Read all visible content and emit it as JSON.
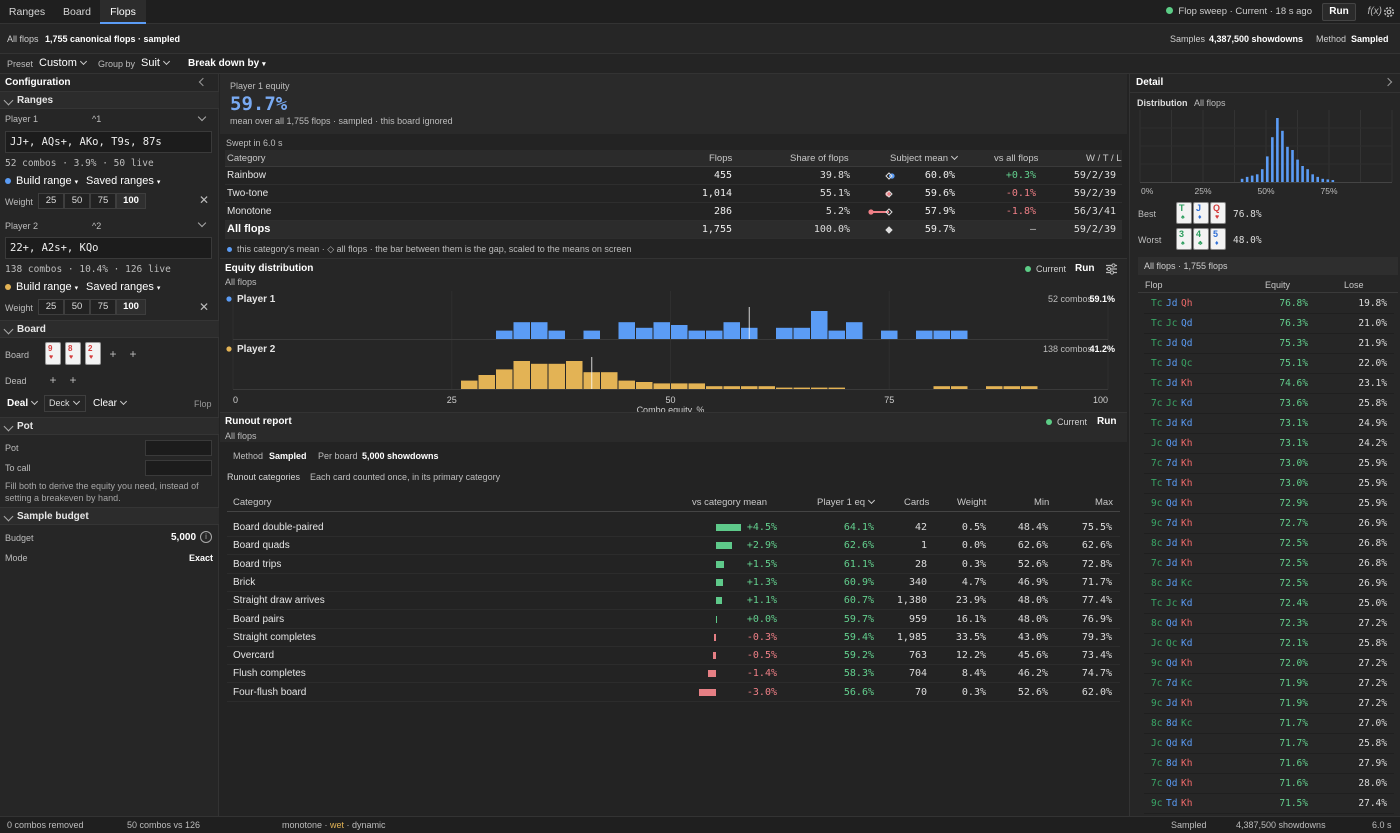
{
  "top": {
    "tabs": [
      "Ranges",
      "Board",
      "Flops"
    ],
    "status": "Flop sweep · Current · 18 s ago",
    "run": "Run",
    "fx": "f(x)"
  },
  "bar2": {
    "prefix": "All flops",
    "summary": "1,755 canonical flops · sampled",
    "samples_label": "Samples",
    "samples_value": "4,387,500 showdowns",
    "method_label": "Method",
    "method_value": "Sampled"
  },
  "bar3": {
    "preset_label": "Preset",
    "preset_value": "Custom",
    "group_label": "Group by",
    "group_value": "Suit",
    "breakdown": "Break down by"
  },
  "left": {
    "title": "Configuration",
    "ranges_title": "Ranges",
    "p1_label": "Player 1",
    "p1_shortcut": "^1",
    "p1_range": "JJ+, AQs+, AKo, T9s, 87s",
    "p1_stats": "52 combos · 3.9% · 50 live",
    "p2_label": "Player 2",
    "p2_shortcut": "^2",
    "p2_range": "22+, A2s+, KQo",
    "p2_stats": "138 combos · 10.4% · 126 live",
    "build_range": "Build range",
    "saved_ranges": "Saved ranges",
    "weight_label": "Weight",
    "weights": [
      "25",
      "50",
      "75",
      "100"
    ],
    "board_title": "Board",
    "board_label": "Board",
    "board_cards": [
      {
        "rank": "9",
        "suit": "♥"
      },
      {
        "rank": "8",
        "suit": "♥"
      },
      {
        "rank": "2",
        "suit": "♥"
      }
    ],
    "dead_label": "Dead",
    "deal": "Deal",
    "deck": "Deck",
    "clear": "Clear",
    "street": "Flop",
    "pot_title": "Pot",
    "pot_label": "Pot",
    "tocall_label": "To call",
    "pot_hint": "Fill both to derive the equity you need, instead of setting a breakeven by hand.",
    "budget_title": "Sample budget",
    "budget_label": "Budget",
    "budget_value": "5,000",
    "mode_label": "Mode",
    "mode_value": "Exact"
  },
  "summary": {
    "label": "Player 1 equity",
    "value": "59.7%",
    "note": "mean over all 1,755 flops · sampled · this board ignored",
    "swept": "Swept in 6.0 s"
  },
  "cat_table": {
    "headers": [
      "Category",
      "Flops",
      "Share of flops",
      "Subject mean",
      "vs all flops",
      "W / T / L"
    ],
    "rows": [
      {
        "name": "Rainbow",
        "flops": "455",
        "share": "39.8%",
        "mean": "60.0%",
        "vs": "+0.3%",
        "wtl": "59/2/39",
        "sign": "pos"
      },
      {
        "name": "Two-tone",
        "flops": "1,014",
        "share": "55.1%",
        "mean": "59.6%",
        "vs": "-0.1%",
        "wtl": "59/2/39",
        "sign": "neg"
      },
      {
        "name": "Monotone",
        "flops": "286",
        "share": "5.2%",
        "mean": "57.9%",
        "vs": "-1.8%",
        "wtl": "56/3/41",
        "sign": "neg"
      },
      {
        "name": "All flops",
        "flops": "1,755",
        "share": "100.0%",
        "mean": "59.7%",
        "vs": "—",
        "wtl": "59/2/39",
        "sign": "none"
      }
    ],
    "legend": "this category's mean  ·  ◇ all flops · the bar between them is the gap, scaled to the means on screen"
  },
  "equity_dist": {
    "title": "Equity distribution",
    "subtitle": "All flops",
    "current": "Current",
    "run": "Run",
    "xlabel": "Combo equity, %",
    "x_ticks": [
      "0",
      "25",
      "50",
      "75",
      "100"
    ]
  },
  "chart_data": [
    {
      "type": "bar",
      "title": "Equity distribution",
      "xlabel": "Combo equity, %",
      "xlim": [
        0,
        100
      ],
      "series": [
        {
          "name": "Player 1",
          "info": "52 combos",
          "mean": "59.1%",
          "color": "#5b9cf5",
          "bins": [
            [
              30,
              0.3
            ],
            [
              32,
              0.6
            ],
            [
              34,
              0.6
            ],
            [
              36,
              0.3
            ],
            [
              40,
              0.3
            ],
            [
              44,
              0.6
            ],
            [
              46,
              0.4
            ],
            [
              48,
              0.6
            ],
            [
              50,
              0.5
            ],
            [
              52,
              0.3
            ],
            [
              54,
              0.3
            ],
            [
              56,
              0.6
            ],
            [
              58,
              0.4
            ],
            [
              62,
              0.4
            ],
            [
              64,
              0.4
            ],
            [
              66,
              1.0
            ],
            [
              68,
              0.3
            ],
            [
              70,
              0.6
            ],
            [
              74,
              0.3
            ],
            [
              78,
              0.3
            ],
            [
              80,
              0.3
            ],
            [
              82,
              0.3
            ]
          ],
          "marker": 59
        },
        {
          "name": "Player 2",
          "info": "138 combos",
          "mean": "41.2%",
          "color": "#e3b355",
          "bins": [
            [
              26,
              0.3
            ],
            [
              28,
              0.5
            ],
            [
              30,
              0.7
            ],
            [
              32,
              1.0
            ],
            [
              34,
              0.9
            ],
            [
              36,
              0.9
            ],
            [
              38,
              1.0
            ],
            [
              40,
              0.6
            ],
            [
              42,
              0.6
            ],
            [
              44,
              0.3
            ],
            [
              46,
              0.25
            ],
            [
              48,
              0.2
            ],
            [
              50,
              0.2
            ],
            [
              52,
              0.2
            ],
            [
              54,
              0.1
            ],
            [
              56,
              0.1
            ],
            [
              58,
              0.1
            ],
            [
              60,
              0.1
            ],
            [
              62,
              0.05
            ],
            [
              64,
              0.05
            ],
            [
              66,
              0.05
            ],
            [
              68,
              0.05
            ],
            [
              80,
              0.1
            ],
            [
              82,
              0.1
            ],
            [
              86,
              0.1
            ],
            [
              88,
              0.1
            ],
            [
              90,
              0.1
            ]
          ],
          "marker": 41
        }
      ]
    },
    {
      "type": "bar",
      "title": "Distribution",
      "x_ticks": [
        "0%",
        "25%",
        "50%",
        "75%"
      ],
      "xlim": [
        0,
        100
      ],
      "bins": [
        [
          40,
          0.05
        ],
        [
          42,
          0.08
        ],
        [
          44,
          0.1
        ],
        [
          46,
          0.12
        ],
        [
          48,
          0.2
        ],
        [
          50,
          0.4
        ],
        [
          52,
          0.7
        ],
        [
          54,
          1.0
        ],
        [
          56,
          0.8
        ],
        [
          58,
          0.55
        ],
        [
          60,
          0.5
        ],
        [
          62,
          0.35
        ],
        [
          64,
          0.25
        ],
        [
          66,
          0.2
        ],
        [
          68,
          0.12
        ],
        [
          70,
          0.08
        ],
        [
          72,
          0.05
        ],
        [
          74,
          0.04
        ],
        [
          76,
          0.03
        ]
      ]
    }
  ],
  "runout": {
    "title": "Runout report",
    "subtitle": "All flops",
    "current": "Current",
    "run": "Run",
    "method_label": "Method",
    "method_value": "Sampled",
    "perboard_label": "Per board",
    "perboard_value": "5,000 showdowns",
    "cat_label": "Runout categories",
    "cat_note": "Each card counted once, in its primary category",
    "headers": [
      "Category",
      "vs category mean",
      "Player 1 eq",
      "Cards",
      "Weight",
      "Min",
      "Max"
    ],
    "rows": [
      {
        "name": "Board double-paired",
        "delta": "+4.5%",
        "d": 4.5,
        "eq": "64.1%",
        "cards": "42",
        "weight": "0.5%",
        "min": "48.4%",
        "max": "75.5%"
      },
      {
        "name": "Board quads",
        "delta": "+2.9%",
        "d": 2.9,
        "eq": "62.6%",
        "cards": "1",
        "weight": "0.0%",
        "min": "62.6%",
        "max": "62.6%"
      },
      {
        "name": "Board trips",
        "delta": "+1.5%",
        "d": 1.5,
        "eq": "61.1%",
        "cards": "28",
        "weight": "0.3%",
        "min": "52.6%",
        "max": "72.8%"
      },
      {
        "name": "Brick",
        "delta": "+1.3%",
        "d": 1.3,
        "eq": "60.9%",
        "cards": "340",
        "weight": "4.7%",
        "min": "46.9%",
        "max": "71.7%"
      },
      {
        "name": "Straight draw arrives",
        "delta": "+1.1%",
        "d": 1.1,
        "eq": "60.7%",
        "cards": "1,380",
        "weight": "23.9%",
        "min": "48.0%",
        "max": "77.4%"
      },
      {
        "name": "Board pairs",
        "delta": "+0.0%",
        "d": 0.0,
        "eq": "59.7%",
        "cards": "959",
        "weight": "16.1%",
        "min": "48.0%",
        "max": "76.9%"
      },
      {
        "name": "Straight completes",
        "delta": "-0.3%",
        "d": -0.3,
        "eq": "59.4%",
        "cards": "1,985",
        "weight": "33.5%",
        "min": "43.0%",
        "max": "79.3%"
      },
      {
        "name": "Overcard",
        "delta": "-0.5%",
        "d": -0.5,
        "eq": "59.2%",
        "cards": "763",
        "weight": "12.2%",
        "min": "45.6%",
        "max": "73.4%"
      },
      {
        "name": "Flush completes",
        "delta": "-1.4%",
        "d": -1.4,
        "eq": "58.3%",
        "cards": "704",
        "weight": "8.4%",
        "min": "46.2%",
        "max": "74.7%"
      },
      {
        "name": "Four-flush board",
        "delta": "-3.0%",
        "d": -3.0,
        "eq": "56.6%",
        "cards": "70",
        "weight": "0.3%",
        "min": "52.6%",
        "max": "62.0%"
      }
    ]
  },
  "detail": {
    "title": "Detail",
    "dist_label": "Distribution",
    "dist_scope": "All flops",
    "best_label": "Best",
    "best_cards": [
      {
        "rank": "T",
        "suit": "♠",
        "color": "#2a9d5c"
      },
      {
        "rank": "J",
        "suit": "♦",
        "color": "#2f6fd6"
      },
      {
        "rank": "Q",
        "suit": "♥",
        "color": "#d43c3c"
      }
    ],
    "best_value": "76.8%",
    "worst_label": "Worst",
    "worst_cards": [
      {
        "rank": "3",
        "suit": "♠",
        "color": "#2a9d5c"
      },
      {
        "rank": "4",
        "suit": "♣",
        "color": "#2a9d5c"
      },
      {
        "rank": "5",
        "suit": "♦",
        "color": "#2f6fd6"
      }
    ],
    "worst_value": "48.0%",
    "list_title": "All flops · 1,755 flops",
    "list_headers": [
      "Flop",
      "Equity",
      "Lose"
    ],
    "flops": [
      {
        "c": [
          "Tc",
          "Jd",
          "Qh"
        ],
        "eq": "76.8%",
        "lose": "19.8%"
      },
      {
        "c": [
          "Tc",
          "Jc",
          "Qd"
        ],
        "eq": "76.3%",
        "lose": "21.0%"
      },
      {
        "c": [
          "Tc",
          "Jd",
          "Qd"
        ],
        "eq": "75.3%",
        "lose": "21.9%"
      },
      {
        "c": [
          "Tc",
          "Jd",
          "Qc"
        ],
        "eq": "75.1%",
        "lose": "22.0%"
      },
      {
        "c": [
          "Tc",
          "Jd",
          "Kh"
        ],
        "eq": "74.6%",
        "lose": "23.1%"
      },
      {
        "c": [
          "7c",
          "Jc",
          "Kd"
        ],
        "eq": "73.6%",
        "lose": "25.8%"
      },
      {
        "c": [
          "Tc",
          "Jd",
          "Kd"
        ],
        "eq": "73.1%",
        "lose": "24.9%"
      },
      {
        "c": [
          "Jc",
          "Qd",
          "Kh"
        ],
        "eq": "73.1%",
        "lose": "24.2%"
      },
      {
        "c": [
          "7c",
          "7d",
          "Kh"
        ],
        "eq": "73.0%",
        "lose": "25.9%"
      },
      {
        "c": [
          "Tc",
          "Td",
          "Kh"
        ],
        "eq": "73.0%",
        "lose": "25.9%"
      },
      {
        "c": [
          "9c",
          "Qd",
          "Kh"
        ],
        "eq": "72.9%",
        "lose": "25.9%"
      },
      {
        "c": [
          "9c",
          "7d",
          "Kh"
        ],
        "eq": "72.7%",
        "lose": "26.9%"
      },
      {
        "c": [
          "8c",
          "Jd",
          "Kh"
        ],
        "eq": "72.5%",
        "lose": "26.8%"
      },
      {
        "c": [
          "7c",
          "Jd",
          "Kh"
        ],
        "eq": "72.5%",
        "lose": "26.8%"
      },
      {
        "c": [
          "8c",
          "Jd",
          "Kc"
        ],
        "eq": "72.5%",
        "lose": "26.9%"
      },
      {
        "c": [
          "Tc",
          "Jc",
          "Kd"
        ],
        "eq": "72.4%",
        "lose": "25.0%"
      },
      {
        "c": [
          "8c",
          "Qd",
          "Kh"
        ],
        "eq": "72.3%",
        "lose": "27.2%"
      },
      {
        "c": [
          "Jc",
          "Qc",
          "Kd"
        ],
        "eq": "72.1%",
        "lose": "25.8%"
      },
      {
        "c": [
          "9c",
          "Qd",
          "Kh"
        ],
        "eq": "72.0%",
        "lose": "27.2%"
      },
      {
        "c": [
          "7c",
          "7d",
          "Kc"
        ],
        "eq": "71.9%",
        "lose": "27.2%"
      },
      {
        "c": [
          "9c",
          "Jd",
          "Kh"
        ],
        "eq": "71.9%",
        "lose": "27.2%"
      },
      {
        "c": [
          "8c",
          "8d",
          "Kc"
        ],
        "eq": "71.7%",
        "lose": "27.0%"
      },
      {
        "c": [
          "Jc",
          "Qd",
          "Kd"
        ],
        "eq": "71.7%",
        "lose": "25.8%"
      },
      {
        "c": [
          "7c",
          "8d",
          "Kh"
        ],
        "eq": "71.6%",
        "lose": "27.9%"
      },
      {
        "c": [
          "7c",
          "Qd",
          "Kh"
        ],
        "eq": "71.6%",
        "lose": "28.0%"
      },
      {
        "c": [
          "9c",
          "Td",
          "Kh"
        ],
        "eq": "71.5%",
        "lose": "27.4%"
      }
    ]
  },
  "footer": {
    "removed": "0 combos removed",
    "vs": "50 combos vs 126",
    "tags": [
      "monotone",
      "wet",
      "dynamic"
    ],
    "method": "Sampled",
    "showdowns": "4,387,500 showdowns",
    "time": "6.0 s"
  },
  "colors": {
    "blue": "#5b9cf5",
    "gold": "#e3b355",
    "positive": "#63d08e",
    "negative": "#ef7f86",
    "card_club": "#2a9d5c",
    "card_diamond": "#5b9cf5",
    "card_heart": "#ef6a6a"
  }
}
